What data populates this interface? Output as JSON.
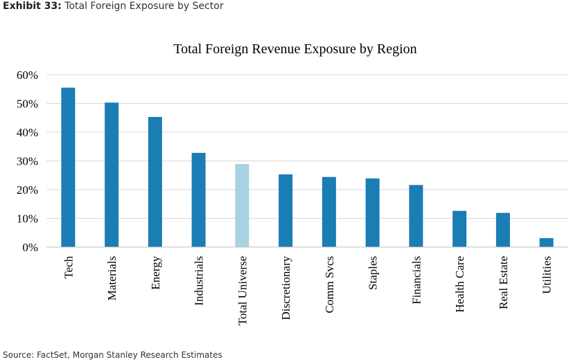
{
  "header": {
    "exhibit_label": "Exhibit 33:",
    "exhibit_title": "Total Foreign Exposure by Sector"
  },
  "footer": {
    "source": "Source: FactSet, Morgan Stanley Research Estimates"
  },
  "chart_data": {
    "type": "bar",
    "title": "Total Foreign Revenue Exposure by Region",
    "xlabel": "",
    "ylabel": "",
    "categories": [
      "Tech",
      "Materials",
      "Energy",
      "Industrials",
      "Total Universe",
      "Discretionary",
      "Comm Svcs",
      "Staples",
      "Financials",
      "Health Care",
      "Real Estate",
      "Utilities"
    ],
    "values": [
      55.5,
      50.3,
      45.3,
      32.8,
      28.9,
      25.3,
      24.4,
      23.9,
      21.6,
      12.6,
      11.9,
      3.1
    ],
    "highlight_index": 4,
    "colors": {
      "bar": "#1a7db4",
      "highlight": "#a8d3e0",
      "grid": "#d9d9d9",
      "axis": "#bfbfbf"
    },
    "ylim": [
      0,
      60
    ],
    "yticks": [
      "0%",
      "10%",
      "20%",
      "30%",
      "40%",
      "50%",
      "60%"
    ],
    "grid": true,
    "legend": "none"
  }
}
